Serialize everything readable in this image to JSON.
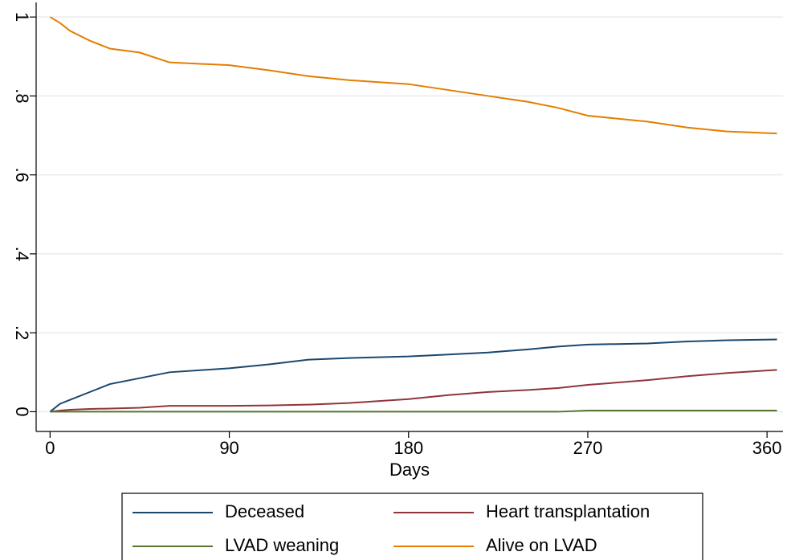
{
  "chart_data": {
    "type": "line",
    "x_label": "Days",
    "x": [
      0,
      5,
      10,
      20,
      30,
      45,
      60,
      90,
      110,
      130,
      150,
      180,
      200,
      220,
      240,
      255,
      270,
      300,
      320,
      340,
      365
    ],
    "series": [
      {
        "name": "Deceased",
        "color": "#1a476f",
        "values": [
          0,
          0.02,
          0.03,
          0.05,
          0.07,
          0.085,
          0.1,
          0.11,
          0.12,
          0.132,
          0.136,
          0.14,
          0.145,
          0.15,
          0.158,
          0.165,
          0.17,
          0.173,
          0.178,
          0.181,
          0.183
        ]
      },
      {
        "name": "Heart transplantation",
        "color": "#90353b",
        "values": [
          0,
          0.003,
          0.005,
          0.007,
          0.008,
          0.01,
          0.015,
          0.015,
          0.016,
          0.018,
          0.022,
          0.032,
          0.042,
          0.05,
          0.055,
          0.06,
          0.068,
          0.08,
          0.09,
          0.098,
          0.106
        ]
      },
      {
        "name": "LVAD weaning",
        "color": "#55752f",
        "values": [
          0,
          0,
          0,
          0,
          0,
          0,
          0,
          0,
          0,
          0,
          0,
          0,
          0,
          0,
          0,
          0,
          0.003,
          0.003,
          0.003,
          0.003,
          0.003
        ]
      },
      {
        "name": "Alive on LVAD",
        "color": "#e37e00",
        "values": [
          1.0,
          0.985,
          0.965,
          0.94,
          0.92,
          0.91,
          0.885,
          0.878,
          0.865,
          0.85,
          0.84,
          0.83,
          0.815,
          0.8,
          0.785,
          0.77,
          0.75,
          0.735,
          0.72,
          0.71,
          0.705
        ]
      }
    ],
    "xlim": [
      -7,
      368
    ],
    "ylim": [
      -0.05,
      1.037
    ],
    "xticks": [
      0,
      90,
      180,
      270,
      360
    ],
    "yticks": [
      0,
      {
        "value": 0.2,
        "label": ".2"
      },
      {
        "value": 0.4,
        "label": ".4"
      },
      {
        "value": 0.6,
        "label": ".6"
      },
      {
        "value": 0.8,
        "label": ".8"
      },
      1
    ],
    "grid": true,
    "legend": "bottom"
  }
}
